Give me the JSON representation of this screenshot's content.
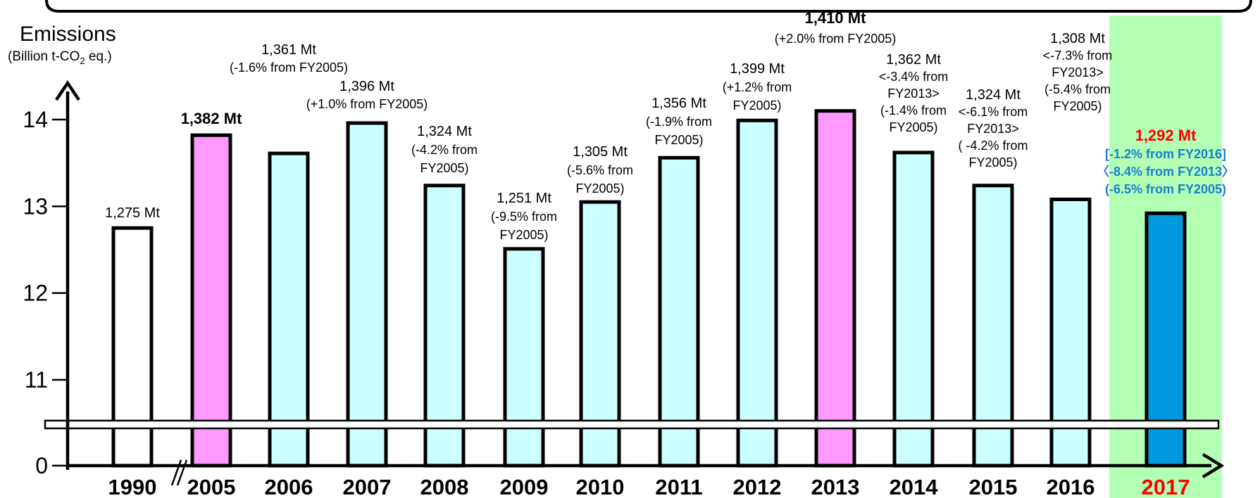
{
  "chart_data": {
    "type": "bar",
    "ylabel": "Emissions",
    "yunit_prefix": "(Billion t-CO",
    "yunit_sub": "2",
    "yunit_suffix": " eq.)",
    "yticks": [
      "0",
      "11",
      "12",
      "13",
      "14"
    ],
    "ylim": [
      11,
      14.5
    ],
    "axis_break": true,
    "categories": [
      "1990",
      "2005",
      "2006",
      "2007",
      "2008",
      "2009",
      "2010",
      "2011",
      "2012",
      "2013",
      "2014",
      "2015",
      "2016",
      "2017"
    ],
    "values": [
      12.75,
      13.82,
      13.61,
      13.96,
      13.24,
      12.51,
      13.05,
      13.56,
      13.99,
      14.1,
      13.62,
      13.24,
      13.08,
      12.92
    ],
    "bar_fills": [
      "#ffffff",
      "#ff99ff",
      "#ccffff",
      "#ccffff",
      "#ccffff",
      "#ccffff",
      "#ccffff",
      "#ccffff",
      "#ccffff",
      "#ff99ff",
      "#ccffff",
      "#ccffff",
      "#ccffff",
      "#0099dd"
    ],
    "highlight_category": "2017",
    "highlight_bg": "#b3ffb3",
    "highlight_label_color": "#ff0000",
    "highlight_change_color": "#1a7fd0",
    "annotations": [
      {
        "lines": [
          "1,275 Mt"
        ],
        "bold": false
      },
      {
        "lines": [
          "1,382 Mt"
        ],
        "bold": true
      },
      {
        "lines": [
          "1,361 Mt",
          "(-1.6% from FY2005)"
        ],
        "bold": false
      },
      {
        "lines": [
          "1,396 Mt",
          "(+1.0% from FY2005)"
        ],
        "bold": false
      },
      {
        "lines": [
          "1,324 Mt",
          "(-4.2% from",
          "FY2005)"
        ],
        "bold": false
      },
      {
        "lines": [
          "1,251 Mt",
          "(-9.5% from",
          "FY2005)"
        ],
        "bold": false
      },
      {
        "lines": [
          "1,305 Mt",
          "(-5.6% from",
          "FY2005)"
        ],
        "bold": false
      },
      {
        "lines": [
          "1,356 Mt",
          "(-1.9% from",
          "FY2005)"
        ],
        "bold": false
      },
      {
        "lines": [
          "1,399 Mt",
          "(+1.2% from",
          "FY2005)"
        ],
        "bold": false
      },
      {
        "lines": [
          "1,410 Mt",
          "(+2.0% from FY2005)"
        ],
        "bold": true
      },
      {
        "lines": [
          "1,362 Mt",
          "<-3.4% from",
          "FY2013>",
          "(-1.4% from",
          "FY2005)"
        ],
        "bold": false
      },
      {
        "lines": [
          "1,324 Mt",
          "<-6.1% from",
          "FY2013>",
          "( -4.2% from",
          "FY2005)"
        ],
        "bold": false
      },
      {
        "lines": [
          "1,308 Mt",
          "<-7.3% from",
          "FY2013>",
          "(-5.4% from",
          "FY2005)"
        ],
        "bold": false
      },
      {
        "lines": [
          "1,292 Mt",
          "[-1.2% from FY2016]",
          "〈-8.4% from FY2013〉",
          "(-6.5% from FY2005)"
        ],
        "bold": true
      }
    ]
  }
}
